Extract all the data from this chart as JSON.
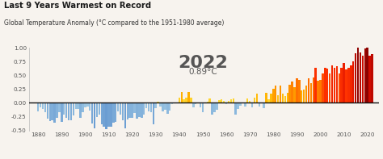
{
  "title": "Last 9 Years Warmest on Record",
  "ylabel": "Global Temperature Anomaly (°C compared to the 1951-1980 average)",
  "annotation_year": "2022",
  "annotation_temp": "0.89°C",
  "ylim": [
    -0.5,
    1.0
  ],
  "years": [
    1880,
    1881,
    1882,
    1883,
    1884,
    1885,
    1886,
    1887,
    1888,
    1889,
    1890,
    1891,
    1892,
    1893,
    1894,
    1895,
    1896,
    1897,
    1898,
    1899,
    1900,
    1901,
    1902,
    1903,
    1904,
    1905,
    1906,
    1907,
    1908,
    1909,
    1910,
    1911,
    1912,
    1913,
    1914,
    1915,
    1916,
    1917,
    1918,
    1919,
    1920,
    1921,
    1922,
    1923,
    1924,
    1925,
    1926,
    1927,
    1928,
    1929,
    1930,
    1931,
    1932,
    1933,
    1934,
    1935,
    1936,
    1937,
    1938,
    1939,
    1940,
    1941,
    1942,
    1943,
    1944,
    1945,
    1946,
    1947,
    1948,
    1949,
    1950,
    1951,
    1952,
    1953,
    1954,
    1955,
    1956,
    1957,
    1958,
    1959,
    1960,
    1961,
    1962,
    1963,
    1964,
    1965,
    1966,
    1967,
    1968,
    1969,
    1970,
    1971,
    1972,
    1973,
    1974,
    1975,
    1976,
    1977,
    1978,
    1979,
    1980,
    1981,
    1982,
    1983,
    1984,
    1985,
    1986,
    1987,
    1988,
    1989,
    1990,
    1991,
    1992,
    1993,
    1994,
    1995,
    1996,
    1997,
    1998,
    1999,
    2000,
    2001,
    2002,
    2003,
    2004,
    2005,
    2006,
    2007,
    2008,
    2009,
    2010,
    2011,
    2012,
    2013,
    2014,
    2015,
    2016,
    2017,
    2018,
    2019,
    2020,
    2021,
    2022
  ],
  "anomalies": [
    -0.16,
    -0.08,
    -0.11,
    -0.17,
    -0.28,
    -0.33,
    -0.31,
    -0.36,
    -0.27,
    -0.17,
    -0.35,
    -0.22,
    -0.27,
    -0.31,
    -0.32,
    -0.23,
    -0.11,
    -0.11,
    -0.27,
    -0.17,
    -0.08,
    -0.07,
    -0.14,
    -0.37,
    -0.47,
    -0.26,
    -0.22,
    -0.39,
    -0.43,
    -0.48,
    -0.43,
    -0.44,
    -0.36,
    -0.35,
    -0.15,
    -0.22,
    -0.31,
    -0.46,
    -0.3,
    -0.27,
    -0.27,
    -0.19,
    -0.28,
    -0.26,
    -0.27,
    -0.22,
    -0.1,
    -0.15,
    -0.17,
    -0.39,
    -0.09,
    0.02,
    -0.07,
    -0.16,
    -0.13,
    -0.2,
    -0.14,
    -0.02,
    0.0,
    -0.01,
    0.09,
    0.2,
    0.07,
    0.09,
    0.2,
    0.09,
    -0.08,
    -0.03,
    0.0,
    -0.08,
    -0.17,
    -0.01,
    0.02,
    0.08,
    -0.21,
    -0.17,
    -0.12,
    0.05,
    0.07,
    0.03,
    -0.03,
    0.04,
    0.06,
    0.08,
    -0.22,
    -0.11,
    -0.06,
    0.0,
    -0.07,
    0.08,
    0.04,
    -0.08,
    0.1,
    0.16,
    -0.07,
    -0.01,
    -0.1,
    0.18,
    0.07,
    0.16,
    0.26,
    0.32,
    0.14,
    0.31,
    0.16,
    0.12,
    0.18,
    0.33,
    0.39,
    0.29,
    0.44,
    0.41,
    0.22,
    0.24,
    0.31,
    0.45,
    0.35,
    0.46,
    0.63,
    0.4,
    0.42,
    0.54,
    0.63,
    0.62,
    0.54,
    0.68,
    0.64,
    0.66,
    0.54,
    0.64,
    0.72,
    0.61,
    0.64,
    0.68,
    0.75,
    0.9,
    1.01,
    0.92,
    0.85,
    0.98,
    1.02,
    0.85,
    0.89
  ],
  "xticks": [
    1880,
    1890,
    1900,
    1910,
    1920,
    1930,
    1940,
    1950,
    1960,
    1970,
    1980,
    1990,
    2000,
    2010,
    2020
  ],
  "yticks": [
    -0.5,
    -0.25,
    0.0,
    0.25,
    0.5,
    0.75,
    1.0
  ],
  "bg_color": "#f7f3ee",
  "title_color": "#1a1a1a",
  "subtitle_color": "#333333",
  "zero_line_color": "#111111",
  "annotation_year_color": "#444444",
  "annotation_temp_color": "#444444"
}
